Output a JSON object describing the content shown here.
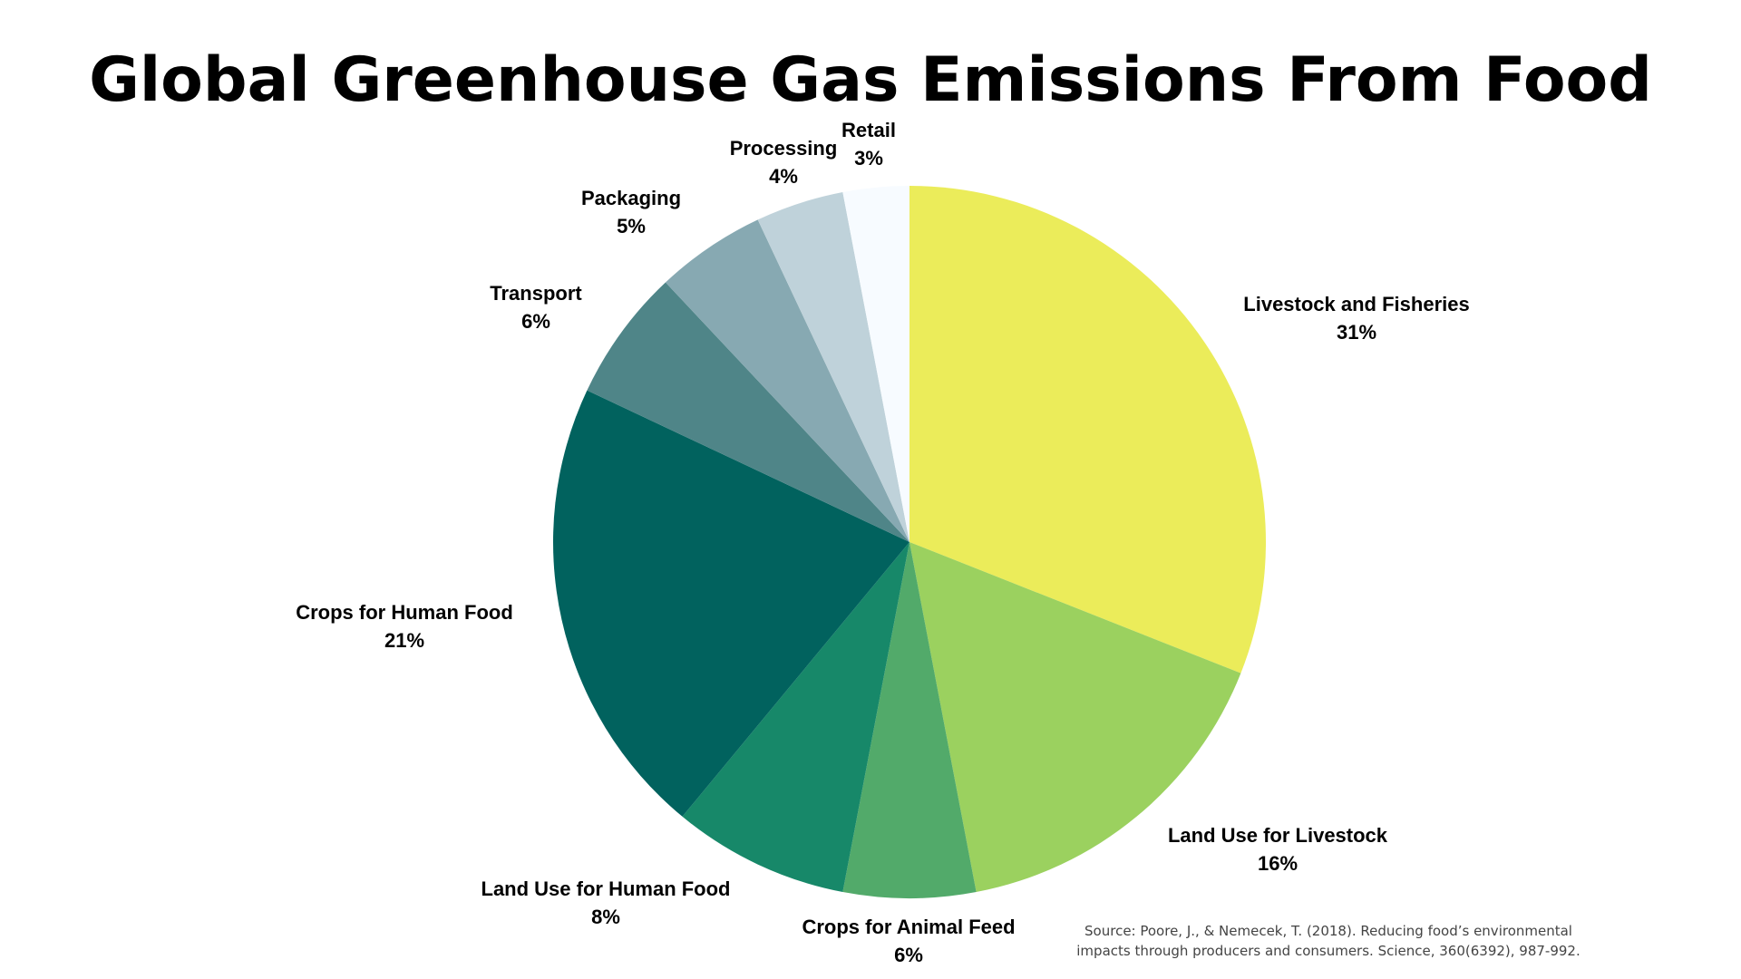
{
  "chart_data": {
    "type": "pie",
    "title": "Global Greenhouse Gas Emissions From Food",
    "start_angle_deg": 0,
    "direction": "clockwise",
    "slices": [
      {
        "label": "Livestock and Fisheries",
        "value": 31,
        "value_label": "31%",
        "color": "#EBEC5A"
      },
      {
        "label": "Land Use for Livestock",
        "value": 16,
        "value_label": "16%",
        "color": "#9BD15F"
      },
      {
        "label": "Crops for Animal Feed",
        "value": 6,
        "value_label": "6%",
        "color": "#52AA6A"
      },
      {
        "label": "Land Use for Human Food",
        "value": 8,
        "value_label": "8%",
        "color": "#178869"
      },
      {
        "label": "Crops for Human Food",
        "value": 21,
        "value_label": "21%",
        "color": "#01625E"
      },
      {
        "label": "Transport",
        "value": 6,
        "value_label": "6%",
        "color": "#4F8588"
      },
      {
        "label": "Packaging",
        "value": 5,
        "value_label": "5%",
        "color": "#87A9B2"
      },
      {
        "label": "Processing",
        "value": 4,
        "value_label": "4%",
        "color": "#BFD2DA"
      },
      {
        "label": "Retail",
        "value": 3,
        "value_label": "3%",
        "color": "#F7FBFF"
      }
    ]
  },
  "source_note": "Source: Poore, J., & Nemecek, T. (2018). Reducing food’s environmental impacts through producers and consumers. Science, 360(6392), 987-992."
}
